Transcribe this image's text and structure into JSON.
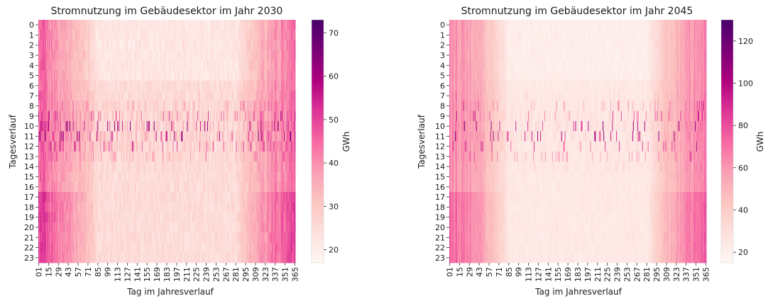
{
  "chart_data": [
    {
      "type": "heatmap",
      "title": "Stromnutzung im Gebäudesektor im Jahr 2030",
      "xlabel": "Tag im Jahresverlauf",
      "ylabel": "Tagesverlauf",
      "x_ticks": [
        "01",
        "15",
        "29",
        "43",
        "57",
        "71",
        "85",
        "99",
        "113",
        "127",
        "141",
        "155",
        "169",
        "183",
        "197",
        "211",
        "225",
        "239",
        "253",
        "267",
        "281",
        "295",
        "309",
        "323",
        "337",
        "351",
        "365"
      ],
      "y_ticks": [
        "0",
        "1",
        "2",
        "3",
        "4",
        "5",
        "6",
        "7",
        "8",
        "9",
        "10",
        "11",
        "12",
        "13",
        "14",
        "15",
        "16",
        "17",
        "18",
        "19",
        "20",
        "21",
        "22",
        "23"
      ],
      "days": 365,
      "hours": 24,
      "colorbar": {
        "label": "GWh",
        "min": 17,
        "max": 73,
        "ticks": [
          20,
          30,
          40,
          50,
          60,
          70
        ]
      },
      "colormap": "RdPu",
      "profile": {
        "winter_base": 44,
        "summer_base": 25,
        "midday_spike_max": 70,
        "evening_peak_bonus": 6
      }
    },
    {
      "type": "heatmap",
      "title": "Stromnutzung im Gebäudesektor im Jahr 2045",
      "xlabel": "Tag im Jahresverlauf",
      "ylabel": "Tagesverlauf",
      "x_ticks": [
        "01",
        "15",
        "29",
        "43",
        "57",
        "71",
        "85",
        "99",
        "113",
        "127",
        "141",
        "155",
        "169",
        "183",
        "197",
        "211",
        "225",
        "239",
        "253",
        "267",
        "281",
        "295",
        "309",
        "323",
        "337",
        "351",
        "365"
      ],
      "y_ticks": [
        "0",
        "1",
        "2",
        "3",
        "4",
        "5",
        "6",
        "7",
        "8",
        "9",
        "10",
        "11",
        "12",
        "13",
        "14",
        "15",
        "16",
        "17",
        "18",
        "19",
        "20",
        "21",
        "22",
        "23"
      ],
      "days": 365,
      "hours": 24,
      "colorbar": {
        "label": "GWh",
        "min": 15,
        "max": 130,
        "ticks": [
          20,
          40,
          60,
          80,
          100,
          120
        ]
      },
      "colormap": "RdPu",
      "profile": {
        "winter_base": 68,
        "summer_base": 24,
        "midday_spike_max": 128,
        "evening_peak_bonus": 10
      }
    }
  ]
}
